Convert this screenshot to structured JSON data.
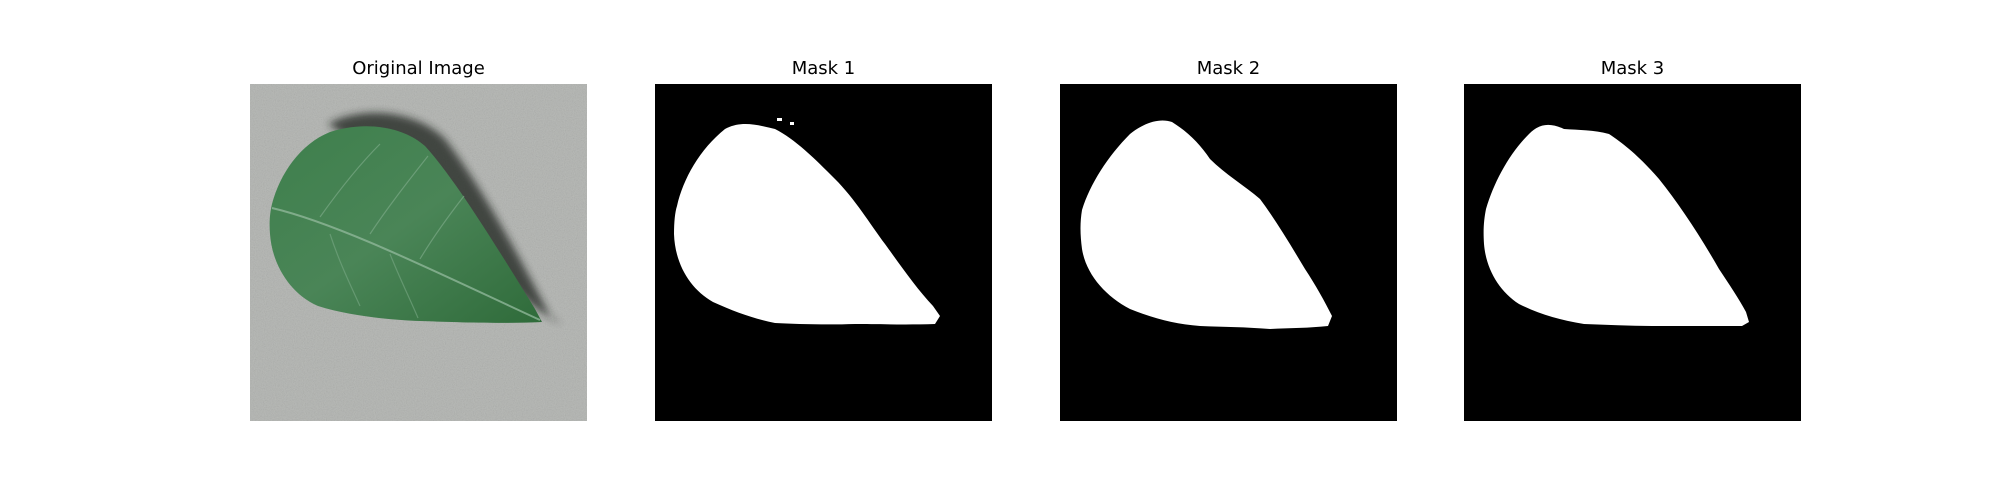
{
  "figure": {
    "panels": [
      {
        "title": "Original Image",
        "kind": "photo"
      },
      {
        "title": "Mask 1",
        "kind": "mask"
      },
      {
        "title": "Mask 2",
        "kind": "mask"
      },
      {
        "title": "Mask 3",
        "kind": "mask"
      }
    ]
  },
  "colors": {
    "background": "#ffffff",
    "mask_background": "#000000",
    "mask_foreground": "#ffffff",
    "leaf": "#3f7a47",
    "surface": "#b9bbb8"
  }
}
